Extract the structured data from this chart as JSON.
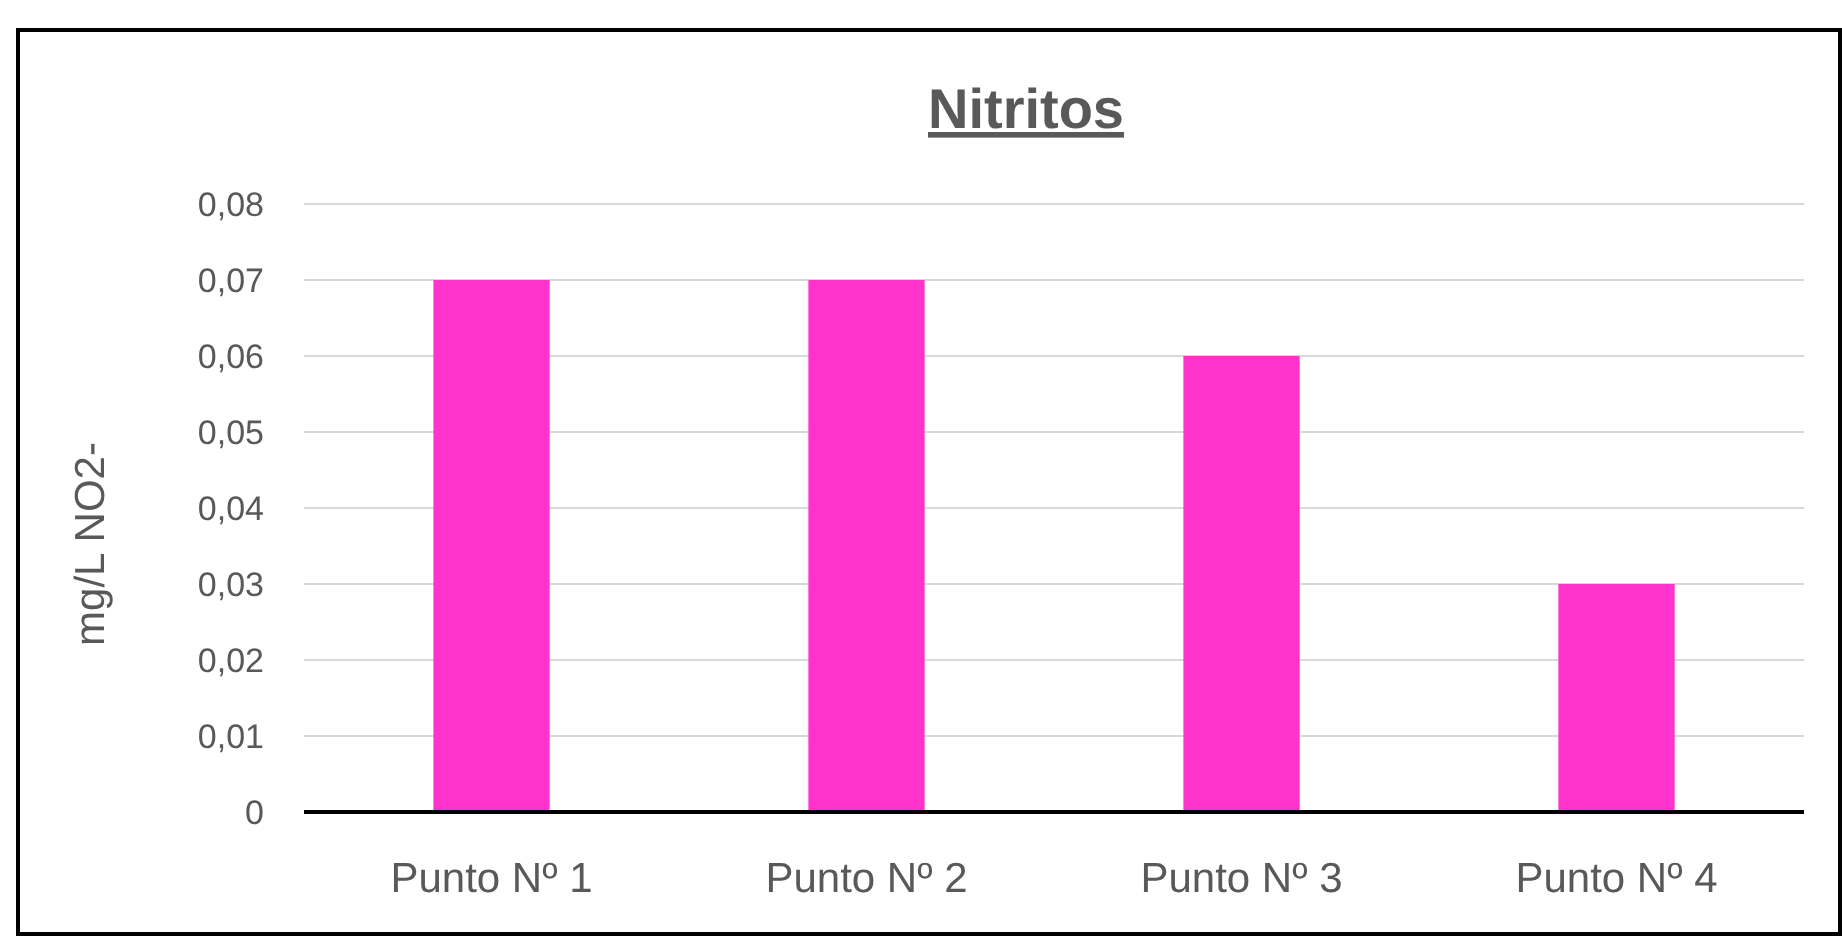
{
  "chart_data": {
    "type": "bar",
    "title": "Nitritos",
    "ylabel": "mg/L NO2-",
    "categories": [
      "Punto Nº 1",
      "Punto Nº 2",
      "Punto Nº 3",
      "Punto Nº 4"
    ],
    "values": [
      0.07,
      0.07,
      0.06,
      0.03
    ],
    "color": "#ff33cc",
    "ylim": [
      0,
      0.08
    ],
    "yticks": [
      0,
      {
        "value": 0.01,
        "label": "0,01"
      },
      {
        "value": 0.02,
        "label": "0,02"
      },
      {
        "value": 0.03,
        "label": "0,03"
      },
      {
        "value": 0.04,
        "label": "0,04"
      },
      {
        "value": 0.05,
        "label": "0,05"
      },
      {
        "value": 0.06,
        "label": "0,06"
      },
      {
        "value": 0.07,
        "label": "0,07"
      },
      {
        "value": 0.08,
        "label": "0,08"
      }
    ],
    "grid": "y"
  }
}
